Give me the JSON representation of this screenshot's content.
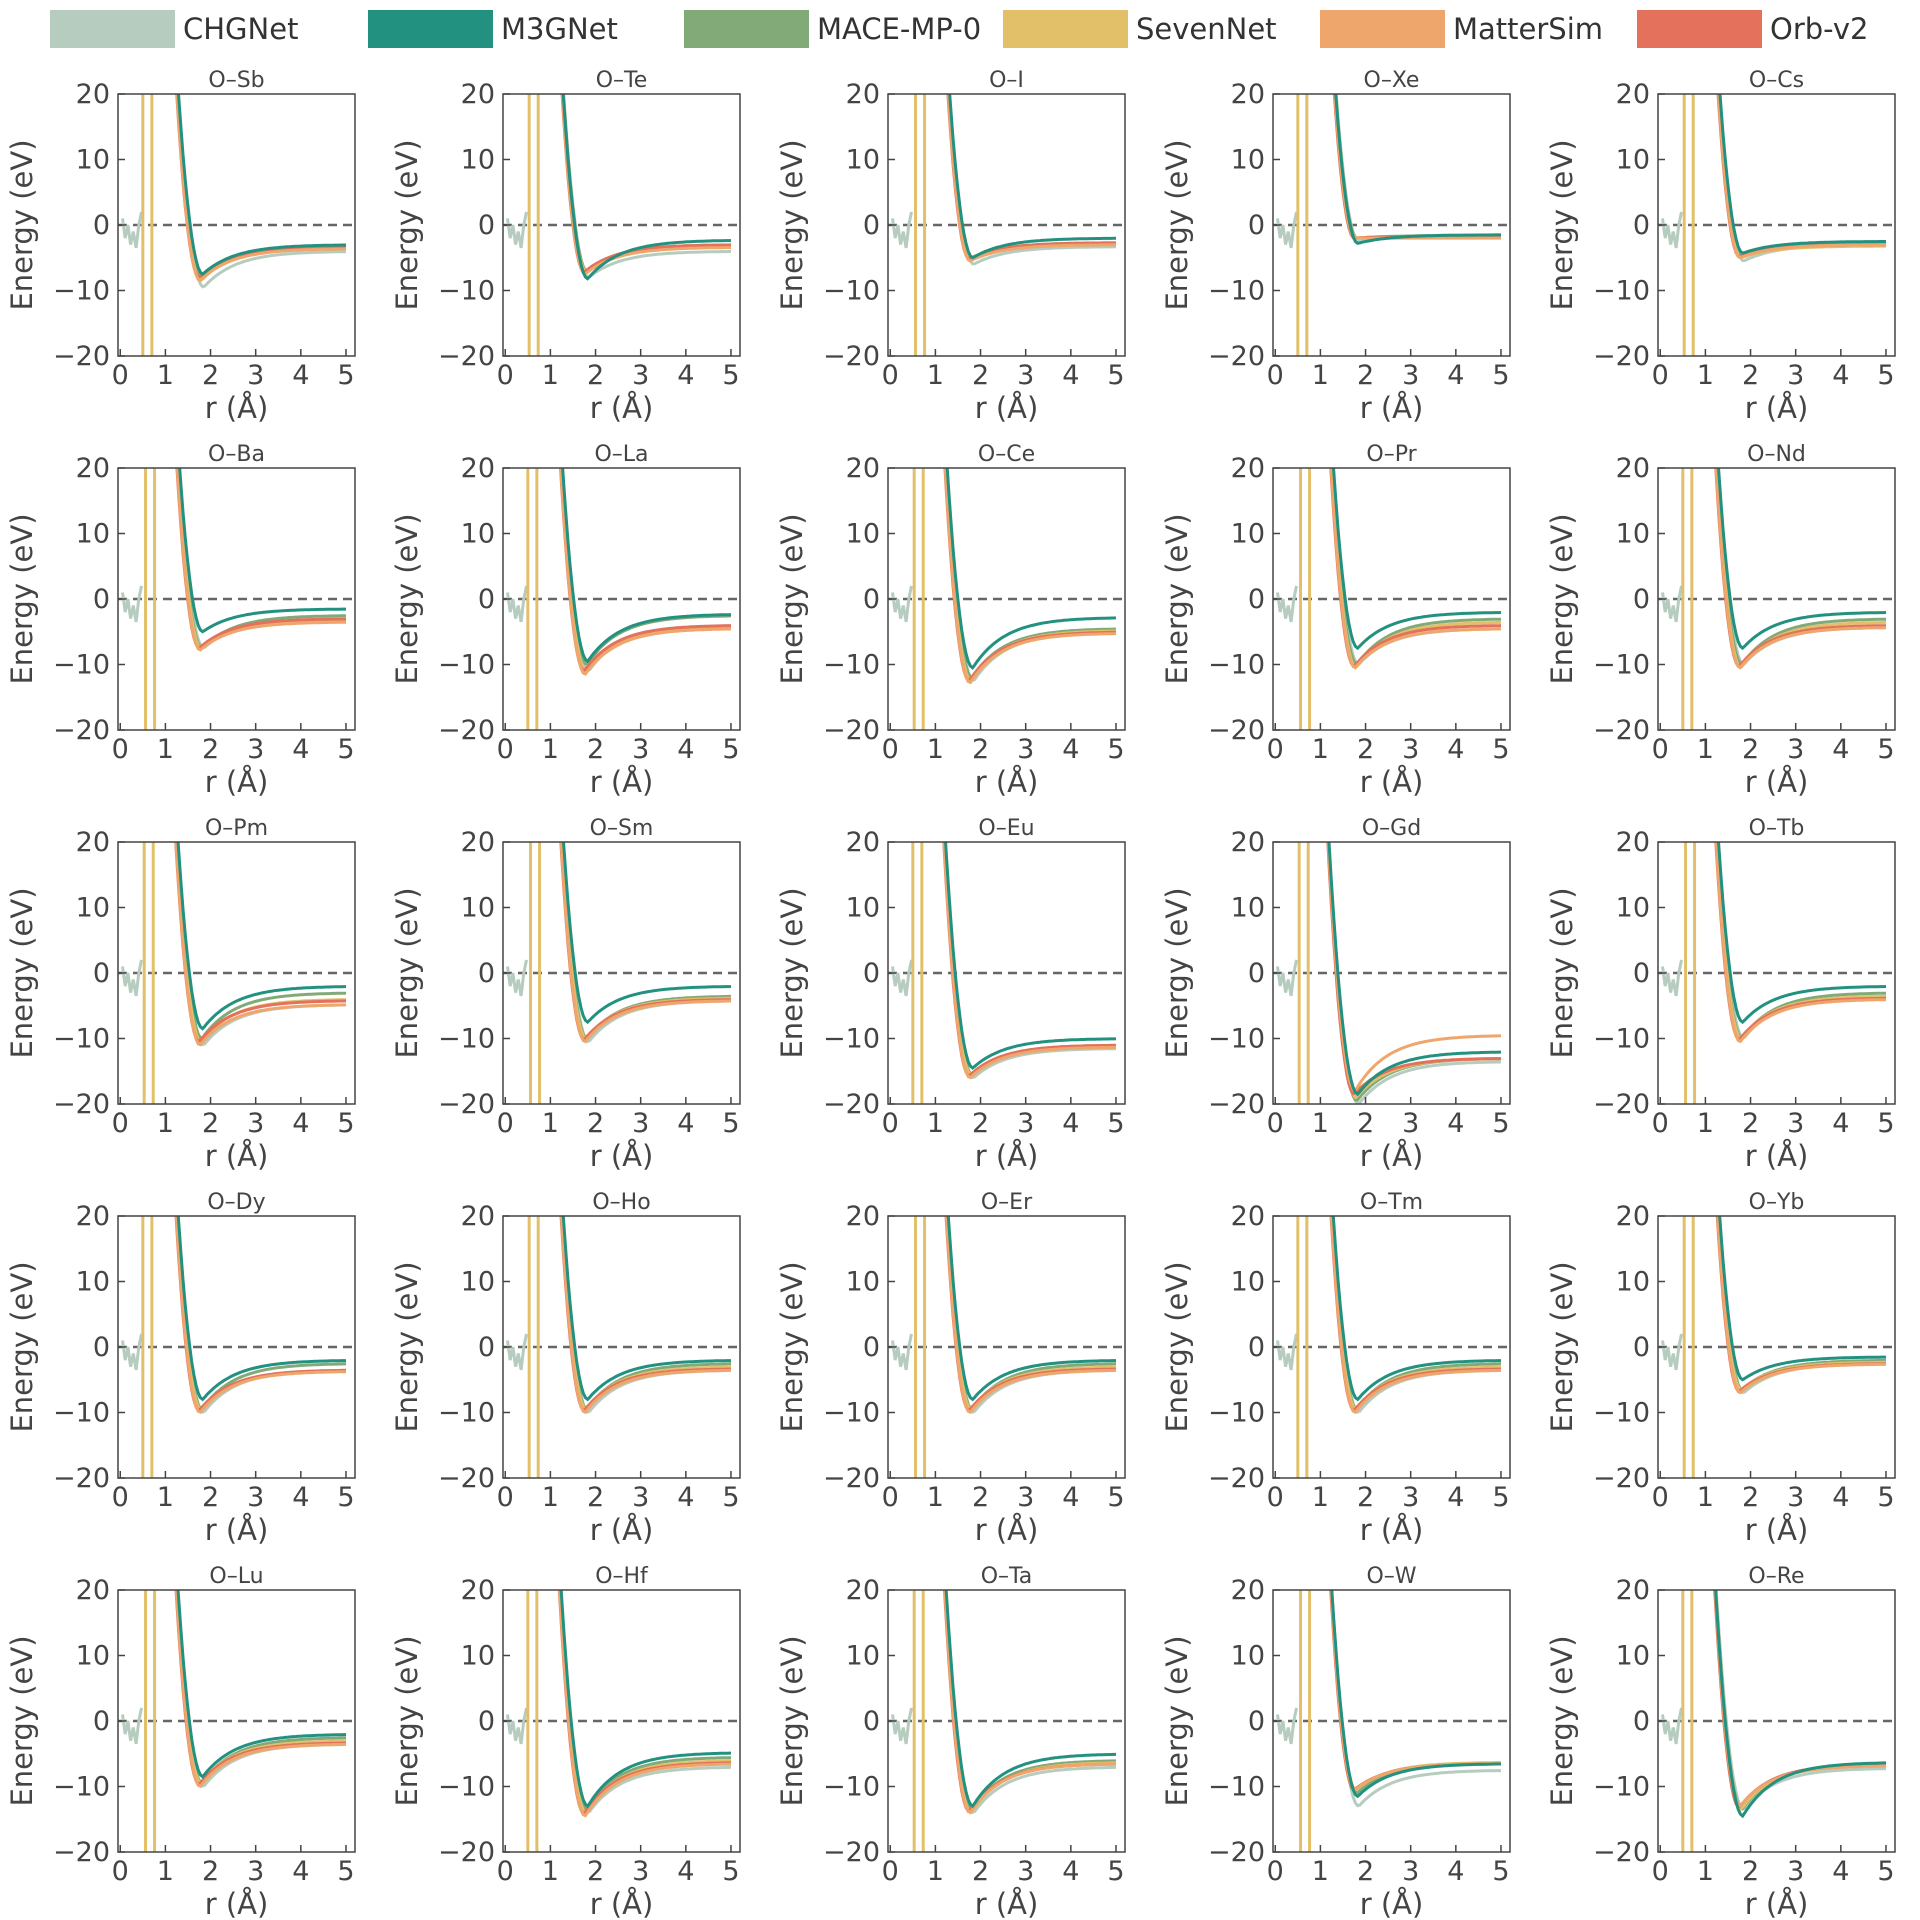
{
  "legend": [
    {
      "name": "CHGNet",
      "color": "#b5ccbf"
    },
    {
      "name": "M3GNet",
      "color": "#23917f"
    },
    {
      "name": "MACE-MP-0",
      "color": "#82aa78"
    },
    {
      "name": "SevenNet",
      "color": "#e2c069"
    },
    {
      "name": "MatterSim",
      "color": "#efa66c"
    },
    {
      "name": "Orb-v2",
      "color": "#e3715b"
    }
  ],
  "chart_data": {
    "type": "line",
    "shared": {
      "xlabel": "r (Å)",
      "ylabel": "Energy (eV)",
      "xlim": [
        -0.05,
        5.2
      ],
      "ylim": [
        -20,
        20
      ],
      "xticks": [
        "0",
        "1",
        "2",
        "3",
        "4",
        "5"
      ],
      "yticks": [
        "20",
        "10",
        "0",
        "−10",
        "−20"
      ],
      "zero_reference_line": true
    },
    "series_names": [
      "CHGNet",
      "M3GNet",
      "MACE-MP-0",
      "SevenNet",
      "MatterSim",
      "Orb-v2"
    ],
    "panels": [
      {
        "title": "O–Sb",
        "mins": [
          -9.5,
          -7.5,
          -8.0,
          -8.5,
          -8.5,
          -8.0
        ],
        "far": [
          -4.0,
          -3.0,
          -3.5,
          -3.3,
          -3.6,
          -3.4
        ]
      },
      {
        "title": "O–Te",
        "mins": [
          -8.0,
          -8.2,
          -7.0,
          -7.0,
          -7.5,
          -7.2
        ],
        "far": [
          -4.0,
          -2.3,
          -3.0,
          -3.0,
          -3.4,
          -3.0
        ]
      },
      {
        "title": "O–I",
        "mins": [
          -6.0,
          -5.0,
          -5.0,
          -5.0,
          -5.5,
          -5.2
        ],
        "far": [
          -3.3,
          -2.0,
          -2.7,
          -2.8,
          -3.0,
          -2.7
        ]
      },
      {
        "title": "O–Xe",
        "mins": [
          -2.5,
          -2.8,
          -2.0,
          -2.0,
          -2.0,
          -2.0
        ],
        "far": [
          -1.5,
          -1.5,
          -1.6,
          -1.8,
          -2.0,
          -1.7
        ]
      },
      {
        "title": "O–Cs",
        "mins": [
          -5.5,
          -4.3,
          -4.8,
          -5.0,
          -5.0,
          -4.8
        ],
        "far": [
          -3.0,
          -2.5,
          -2.8,
          -3.2,
          -3.0,
          -3.0
        ]
      },
      {
        "title": "O–Ba",
        "mins": [
          -7.5,
          -5.0,
          -7.5,
          -7.5,
          -7.8,
          -7.5
        ],
        "far": [
          -3.0,
          -1.5,
          -2.5,
          -3.2,
          -3.5,
          -3.0
        ]
      },
      {
        "title": "O–La",
        "mins": [
          -11.0,
          -9.5,
          -10.0,
          -11.0,
          -11.5,
          -11.0
        ],
        "far": [
          -4.0,
          -2.3,
          -2.5,
          -4.3,
          -4.5,
          -4.0
        ]
      },
      {
        "title": "O–Ce",
        "mins": [
          -12.5,
          -10.5,
          -12.0,
          -12.5,
          -12.8,
          -12.5
        ],
        "far": [
          -5.0,
          -2.8,
          -4.5,
          -4.8,
          -5.2,
          -5.0
        ]
      },
      {
        "title": "O–Pr",
        "mins": [
          -10.0,
          -7.5,
          -10.0,
          -10.5,
          -10.5,
          -10.3
        ],
        "far": [
          -4.5,
          -2.0,
          -3.0,
          -3.5,
          -4.5,
          -4.0
        ]
      },
      {
        "title": "O–Nd",
        "mins": [
          -10.0,
          -7.5,
          -10.0,
          -10.5,
          -10.5,
          -10.3
        ],
        "far": [
          -4.3,
          -2.0,
          -3.0,
          -3.5,
          -4.3,
          -4.0
        ]
      },
      {
        "title": "O–Pm",
        "mins": [
          -11.0,
          -8.5,
          -10.0,
          -10.5,
          -11.0,
          -10.5
        ],
        "far": [
          -4.8,
          -2.0,
          -3.0,
          -4.0,
          -4.8,
          -4.2
        ]
      },
      {
        "title": "O–Sm",
        "mins": [
          -10.5,
          -7.5,
          -10.0,
          -10.0,
          -10.5,
          -10.2
        ],
        "far": [
          -4.2,
          -2.0,
          -3.5,
          -3.8,
          -4.2,
          -4.0
        ]
      },
      {
        "title": "O–Eu",
        "mins": [
          -16.0,
          -14.5,
          -15.5,
          -15.5,
          -16.0,
          -15.7
        ],
        "far": [
          -11.5,
          -10.0,
          -11.0,
          -11.0,
          -11.3,
          -11.0
        ]
      },
      {
        "title": "O–Gd",
        "mins": [
          -20.0,
          -18.5,
          -19.5,
          -19.0,
          -18.0,
          -18.5
        ],
        "far": [
          -13.5,
          -12.0,
          -13.0,
          -13.0,
          -9.5,
          -13.0
        ]
      },
      {
        "title": "O–Tb",
        "mins": [
          -10.0,
          -7.5,
          -10.0,
          -10.0,
          -10.5,
          -10.2
        ],
        "far": [
          -3.5,
          -2.0,
          -3.0,
          -3.5,
          -4.0,
          -3.8
        ]
      },
      {
        "title": "O–Dy",
        "mins": [
          -10.0,
          -8.0,
          -9.5,
          -9.5,
          -10.0,
          -9.7
        ],
        "far": [
          -3.5,
          -2.0,
          -2.5,
          -3.5,
          -3.7,
          -3.5
        ]
      },
      {
        "title": "O–Ho",
        "mins": [
          -10.0,
          -8.0,
          -9.5,
          -9.5,
          -10.0,
          -9.7
        ],
        "far": [
          -3.5,
          -2.0,
          -2.5,
          -3.0,
          -3.5,
          -3.3
        ]
      },
      {
        "title": "O–Er",
        "mins": [
          -10.0,
          -8.0,
          -9.5,
          -9.5,
          -10.0,
          -9.7
        ],
        "far": [
          -3.5,
          -2.0,
          -2.5,
          -3.0,
          -3.5,
          -3.3
        ]
      },
      {
        "title": "O–Tm",
        "mins": [
          -10.0,
          -8.0,
          -9.5,
          -9.5,
          -10.0,
          -9.7
        ],
        "far": [
          -3.5,
          -2.0,
          -2.5,
          -3.0,
          -3.5,
          -3.3
        ]
      },
      {
        "title": "O–Yb",
        "mins": [
          -7.0,
          -5.0,
          -6.5,
          -6.5,
          -7.0,
          -6.8
        ],
        "far": [
          -2.5,
          -1.5,
          -2.0,
          -2.3,
          -2.6,
          -2.5
        ]
      },
      {
        "title": "O–Lu",
        "mins": [
          -10.0,
          -8.5,
          -9.5,
          -9.5,
          -10.0,
          -9.7
        ],
        "far": [
          -3.5,
          -2.0,
          -2.5,
          -3.0,
          -3.5,
          -3.3
        ]
      },
      {
        "title": "O–Hf",
        "mins": [
          -14.0,
          -13.0,
          -13.5,
          -14.0,
          -14.5,
          -14.2
        ],
        "far": [
          -7.0,
          -4.8,
          -5.5,
          -6.0,
          -6.5,
          -6.3
        ]
      },
      {
        "title": "O–Ta",
        "mins": [
          -14.0,
          -13.0,
          -13.5,
          -14.0,
          -14.0,
          -13.8
        ],
        "far": [
          -7.0,
          -5.0,
          -6.0,
          -6.3,
          -6.5,
          -6.5
        ]
      },
      {
        "title": "O–W",
        "mins": [
          -13.0,
          -11.5,
          -11.0,
          -10.5,
          -10.5,
          -10.5
        ],
        "far": [
          -7.5,
          -6.5,
          -6.5,
          -6.3,
          -6.5,
          -6.5
        ]
      },
      {
        "title": "O–Re",
        "mins": [
          -13.5,
          -14.5,
          -13.5,
          -13.5,
          -13.0,
          -13.2
        ],
        "far": [
          -7.2,
          -6.3,
          -6.5,
          -6.5,
          -6.8,
          -6.6
        ]
      }
    ]
  }
}
